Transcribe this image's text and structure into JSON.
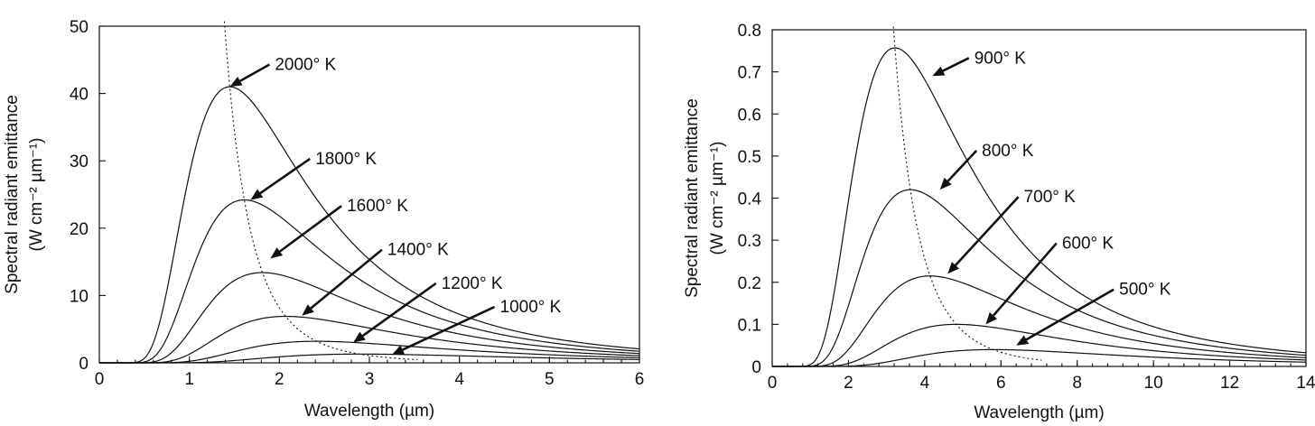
{
  "chart_data": [
    {
      "type": "line",
      "title": "",
      "xlabel": "Wavelength (µm)",
      "ylabel_line1": "Spectral radiant emittance",
      "ylabel_line2": "(W cm⁻² µm⁻¹)",
      "xlim": [
        0,
        6
      ],
      "ylim": [
        0,
        50
      ],
      "xticks": [
        0,
        1,
        2,
        3,
        4,
        5,
        6
      ],
      "yticks": [
        0,
        10,
        20,
        30,
        40,
        50
      ],
      "grid": false,
      "series": [
        {
          "name": "2000° K",
          "temperature_K": 2000,
          "peak_x": 1.45,
          "peak_y": 41.0
        },
        {
          "name": "1800° K",
          "temperature_K": 1800,
          "peak_x": 1.61,
          "peak_y": 24.2
        },
        {
          "name": "1600° K",
          "temperature_K": 1600,
          "peak_x": 1.81,
          "peak_y": 13.4
        },
        {
          "name": "1400° K",
          "temperature_K": 1400,
          "peak_x": 2.07,
          "peak_y": 6.9
        },
        {
          "name": "1200° K",
          "temperature_K": 1200,
          "peak_x": 2.42,
          "peak_y": 3.2
        },
        {
          "name": "1000° K",
          "temperature_K": 1000,
          "peak_x": 2.9,
          "peak_y": 1.3
        }
      ],
      "annotations": [
        {
          "text": "2000° K",
          "target": [
            1.45,
            41.0
          ],
          "text_at": [
            1.95,
            43.5
          ]
        },
        {
          "text": "1800° K",
          "target": [
            1.68,
            24.2
          ],
          "text_at": [
            2.4,
            29.5
          ]
        },
        {
          "text": "1600° K",
          "target": [
            1.9,
            15.5
          ],
          "text_at": [
            2.75,
            22.5
          ]
        },
        {
          "text": "1400° K",
          "target": [
            2.25,
            7.0
          ],
          "text_at": [
            3.2,
            16.0
          ]
        },
        {
          "text": "1200° K",
          "target": [
            2.82,
            3.0
          ],
          "text_at": [
            3.8,
            11.0
          ]
        },
        {
          "text": "1000° K",
          "target": [
            3.25,
            1.2
          ],
          "text_at": [
            4.45,
            7.5
          ]
        }
      ],
      "peak_locus": "dotted"
    },
    {
      "type": "line",
      "title": "",
      "xlabel": "Wavelength (µm)",
      "ylabel_line1": "Spectral radiant emittance",
      "ylabel_line2": "(W cm⁻² µm⁻¹)",
      "xlim": [
        0,
        14
      ],
      "ylim": [
        0,
        0.8
      ],
      "xticks": [
        0,
        2,
        4,
        6,
        8,
        10,
        12,
        14
      ],
      "yticks": [
        0,
        0.1,
        0.2,
        0.3,
        0.4,
        0.5,
        0.6,
        0.7,
        0.8
      ],
      "ytick_labels": [
        "0",
        "0.1",
        "0.2",
        "0.3",
        "0.4",
        "0.5",
        "0.6",
        "0.7",
        "0.8"
      ],
      "grid": false,
      "series": [
        {
          "name": "900° K",
          "temperature_K": 900,
          "peak_x": 3.22,
          "peak_y": 0.757
        },
        {
          "name": "800° K",
          "temperature_K": 800,
          "peak_x": 3.62,
          "peak_y": 0.42
        },
        {
          "name": "700° K",
          "temperature_K": 700,
          "peak_x": 4.14,
          "peak_y": 0.215
        },
        {
          "name": "600° K",
          "temperature_K": 600,
          "peak_x": 4.83,
          "peak_y": 0.1
        },
        {
          "name": "500° K",
          "temperature_K": 500,
          "peak_x": 5.8,
          "peak_y": 0.04
        }
      ],
      "annotations": [
        {
          "text": "900° K",
          "target": [
            4.2,
            0.69
          ],
          "text_at": [
            5.3,
            0.72
          ]
        },
        {
          "text": "800° K",
          "target": [
            4.4,
            0.42
          ],
          "text_at": [
            5.5,
            0.5
          ]
        },
        {
          "text": "700° K",
          "target": [
            4.6,
            0.22
          ],
          "text_at": [
            6.6,
            0.39
          ]
        },
        {
          "text": "600° K",
          "target": [
            5.6,
            0.1
          ],
          "text_at": [
            7.6,
            0.28
          ]
        },
        {
          "text": "500° K",
          "target": [
            6.4,
            0.05
          ],
          "text_at": [
            9.1,
            0.17
          ]
        }
      ],
      "peak_locus": "dotted"
    }
  ]
}
